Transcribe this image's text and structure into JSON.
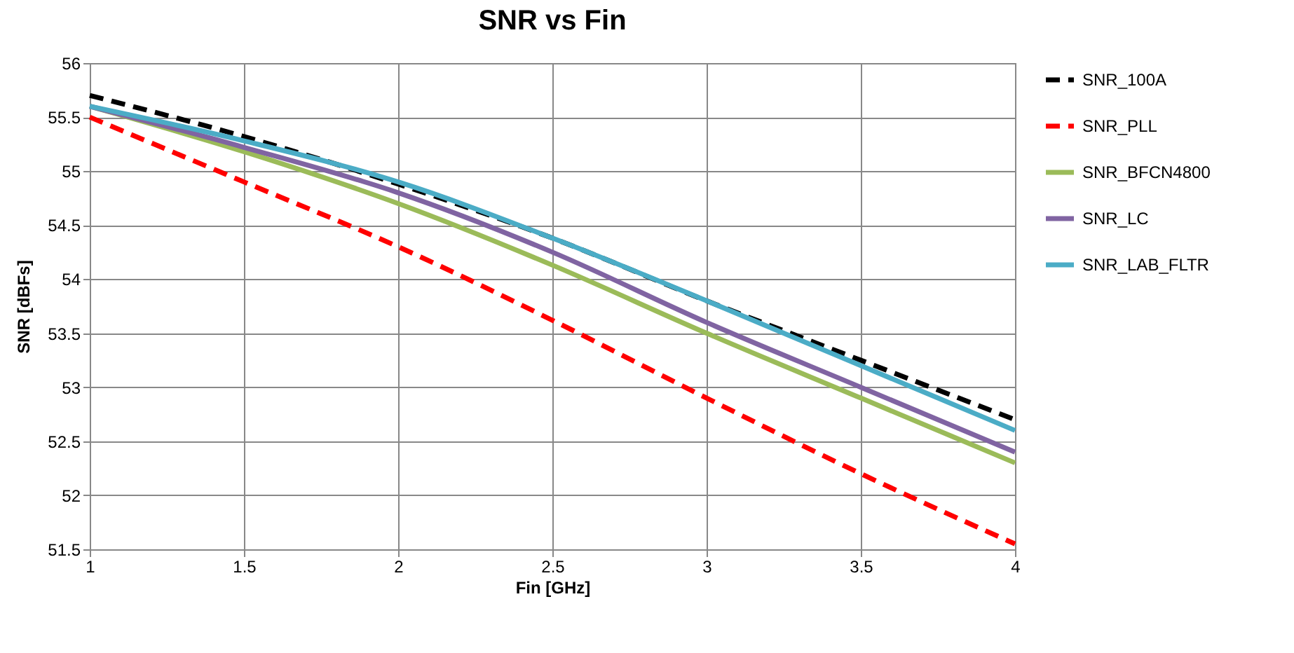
{
  "chart_data": {
    "type": "line",
    "title": "SNR vs Fin",
    "xlabel": "Fin [GHz]",
    "ylabel": "SNR [dBFs]",
    "x": [
      1,
      1.5,
      2,
      2.5,
      3,
      3.5,
      4
    ],
    "series": [
      {
        "name": "SNR_100A",
        "color": "#000000",
        "line_style": "dashed",
        "values": [
          55.7,
          55.32,
          54.88,
          54.38,
          53.8,
          53.25,
          52.7
        ]
      },
      {
        "name": "SNR_PLL",
        "color": "#ff0000",
        "line_style": "dashed",
        "values": [
          55.5,
          54.9,
          54.3,
          53.62,
          52.9,
          52.2,
          51.55
        ]
      },
      {
        "name": "SNR_BFCN4800",
        "color": "#9bbb59",
        "line_style": "solid",
        "values": [
          55.6,
          55.18,
          54.7,
          54.13,
          53.5,
          52.9,
          52.3
        ]
      },
      {
        "name": "SNR_LC",
        "color": "#8064a2",
        "line_style": "solid",
        "values": [
          55.6,
          55.22,
          54.8,
          54.25,
          53.6,
          53.0,
          52.4
        ]
      },
      {
        "name": "SNR_LAB_FLTR",
        "color": "#4bacc6",
        "line_style": "solid",
        "values": [
          55.6,
          55.28,
          54.9,
          54.38,
          53.8,
          53.2,
          52.6
        ]
      }
    ],
    "xlim": [
      1,
      4
    ],
    "xticks": [
      1,
      1.5,
      2,
      2.5,
      3,
      3.5,
      4
    ],
    "ylim": [
      51.5,
      56
    ],
    "yticks": [
      51.5,
      52,
      52.5,
      53,
      53.5,
      54,
      54.5,
      55,
      55.5,
      56
    ],
    "grid": true,
    "legend": "right",
    "marker": "none"
  }
}
